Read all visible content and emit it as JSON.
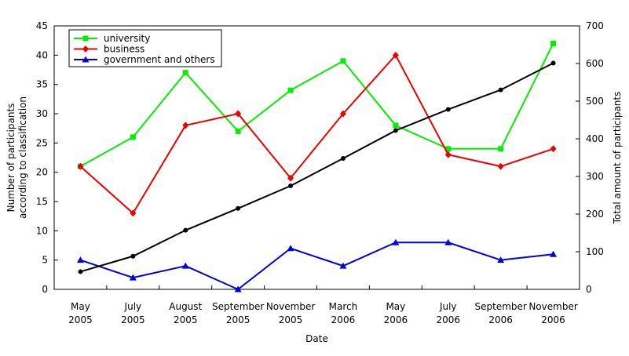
{
  "chart_data": {
    "type": "line",
    "title": "",
    "xlabel": "Date",
    "ylabel": "Number of participants\naccording to classification",
    "y2label": "Total amount of participants",
    "ylim": [
      0,
      45
    ],
    "y_ticks": [
      0,
      5,
      10,
      15,
      20,
      25,
      30,
      35,
      40,
      45
    ],
    "y2lim": [
      0,
      700
    ],
    "y2_ticks": [
      0,
      100,
      200,
      300,
      400,
      500,
      600,
      700
    ],
    "grid": false,
    "legend_position": "top-left",
    "categories": [
      "May\n2005",
      "July\n2005",
      "August\n2005",
      "September\n2005",
      "November\n2005",
      "March\n2006",
      "May\n2006",
      "July\n2006",
      "September\n2006",
      "November\n2006"
    ],
    "series": [
      {
        "name": "university",
        "axis": "left",
        "color": "#00ee00",
        "marker": "square",
        "values": [
          21,
          26,
          37,
          27,
          34,
          39,
          28,
          24,
          24,
          42
        ]
      },
      {
        "name": "business",
        "axis": "left",
        "color": "#ee0000",
        "marker": "diamond",
        "values": [
          21,
          13,
          28,
          30,
          19,
          30,
          40,
          23,
          21,
          24
        ]
      },
      {
        "name": "government and others",
        "axis": "left",
        "color": "#0000dd",
        "marker": "triangle",
        "values": [
          5,
          2,
          4,
          0,
          7,
          4,
          8,
          8,
          5,
          6
        ]
      },
      {
        "axis": "right",
        "color": "#000000",
        "marker": "circle",
        "values": [
          47,
          88,
          157,
          215,
          275,
          348,
          422,
          478,
          530,
          601
        ]
      }
    ]
  }
}
